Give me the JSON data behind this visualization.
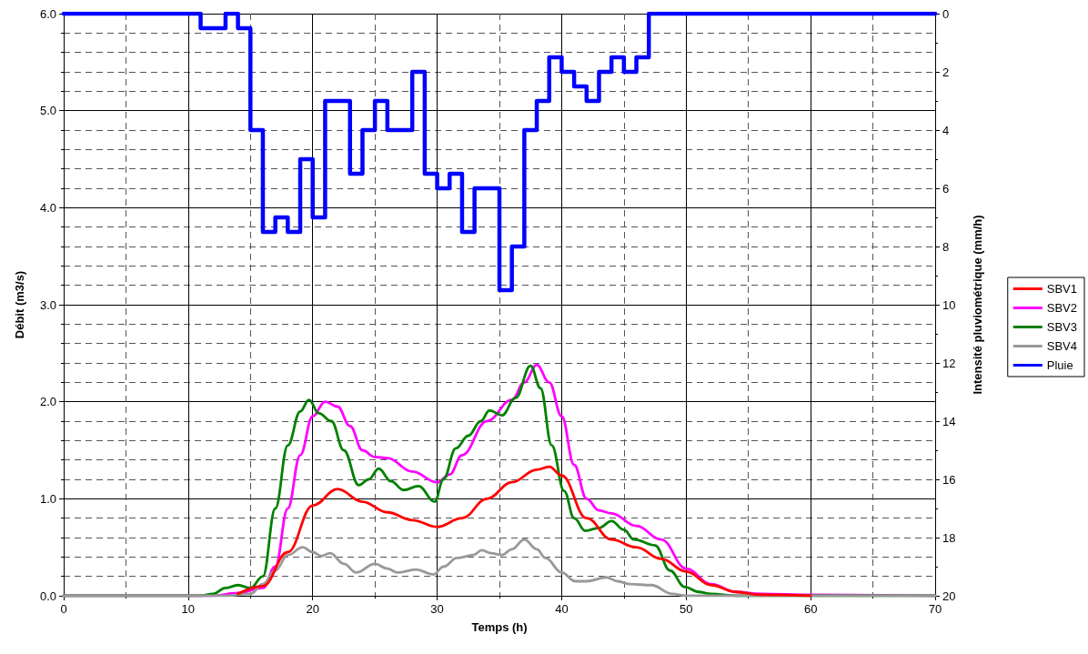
{
  "chart_data": {
    "type": "line",
    "xlabel": "Temps (h)",
    "ylabel": "Débit (m3/s)",
    "y2label": "Intensité pluviométrique (mm/h)",
    "xlim": [
      0,
      70
    ],
    "xticks": [
      0,
      10,
      20,
      30,
      40,
      50,
      60,
      70
    ],
    "ylim": [
      0,
      6
    ],
    "yticks": [
      {
        "value": 0,
        "label": "0.0"
      },
      {
        "value": 1,
        "label": "1.0"
      },
      {
        "value": 2,
        "label": "2.0"
      },
      {
        "value": 3,
        "label": "3.0"
      },
      {
        "value": 4,
        "label": "4.0"
      },
      {
        "value": 5,
        "label": "5.0"
      },
      {
        "value": 6,
        "label": "6.0"
      }
    ],
    "y2lim": [
      20,
      0
    ],
    "y2ticks": [
      0,
      2,
      4,
      6,
      8,
      10,
      12,
      14,
      16,
      18,
      20
    ],
    "grid": true,
    "legend": "right",
    "marker": "none",
    "series": [
      {
        "name": "SBV1",
        "color": "#ff0000",
        "x": [
          14,
          16,
          18,
          20,
          22,
          24,
          26,
          28,
          30,
          32,
          34,
          36,
          38,
          39,
          40,
          42,
          44,
          46,
          48,
          50,
          52,
          54,
          56,
          60
        ],
        "values": [
          0.02,
          0.1,
          0.45,
          0.93,
          1.1,
          0.97,
          0.86,
          0.78,
          0.71,
          0.8,
          1.0,
          1.17,
          1.3,
          1.33,
          1.24,
          0.8,
          0.58,
          0.5,
          0.38,
          0.25,
          0.11,
          0.04,
          0.01,
          0
        ]
      },
      {
        "name": "SBV2",
        "color": "#ff00ff",
        "x": [
          0,
          12,
          14,
          16,
          17,
          18,
          19,
          20,
          21,
          22,
          23,
          24,
          25,
          26,
          28,
          30,
          31,
          32,
          34,
          36,
          37,
          38,
          39,
          40,
          41,
          42,
          43,
          44,
          46,
          48,
          50,
          52,
          54,
          56,
          60,
          70
        ],
        "values": [
          0,
          0,
          0.03,
          0.08,
          0.3,
          0.9,
          1.45,
          1.85,
          2.0,
          1.95,
          1.75,
          1.5,
          1.43,
          1.42,
          1.28,
          1.17,
          1.25,
          1.45,
          1.8,
          2.02,
          2.2,
          2.38,
          2.2,
          1.85,
          1.35,
          1.0,
          0.88,
          0.85,
          0.72,
          0.58,
          0.28,
          0.12,
          0.04,
          0.02,
          0.01,
          0
        ]
      },
      {
        "name": "SBV3",
        "color": "#008000",
        "x": [
          0,
          11,
          12,
          13,
          14,
          15,
          16,
          17,
          18,
          19,
          19.7,
          20.5,
          21.5,
          22.5,
          23.7,
          24.5,
          25.3,
          26.3,
          27.3,
          28.5,
          29.8,
          30.5,
          31.5,
          32.5,
          33.5,
          34.2,
          35.2,
          36.3,
          37.5,
          38.3,
          39.2,
          40.2,
          41,
          41.9,
          43,
          44,
          45,
          45.8,
          47.5,
          48.7,
          49.9,
          51,
          52,
          54,
          70
        ],
        "values": [
          0,
          0,
          0.02,
          0.08,
          0.11,
          0.08,
          0.2,
          0.9,
          1.55,
          1.9,
          2.02,
          1.88,
          1.8,
          1.5,
          1.14,
          1.2,
          1.31,
          1.18,
          1.09,
          1.13,
          0.97,
          1.2,
          1.52,
          1.65,
          1.8,
          1.91,
          1.86,
          2.04,
          2.37,
          2.14,
          1.55,
          1.08,
          0.8,
          0.67,
          0.7,
          0.77,
          0.68,
          0.58,
          0.52,
          0.26,
          0.09,
          0.04,
          0.02,
          0,
          0
        ]
      },
      {
        "name": "SBV4",
        "color": "#999999",
        "x": [
          0,
          13,
          15,
          16,
          17,
          18,
          19.2,
          20,
          20.7,
          21.4,
          22.5,
          23.5,
          25,
          26,
          26.8,
          28.3,
          29.7,
          30.5,
          31.6,
          32.9,
          33.6,
          34.3,
          35.2,
          36,
          37,
          38,
          38.7,
          40,
          41.1,
          42,
          43.6,
          44.5,
          45.5,
          47.2,
          48.9,
          50,
          70
        ],
        "values": [
          0,
          0,
          0.02,
          0.12,
          0.26,
          0.42,
          0.5,
          0.45,
          0.41,
          0.44,
          0.33,
          0.24,
          0.33,
          0.28,
          0.24,
          0.27,
          0.22,
          0.3,
          0.39,
          0.42,
          0.47,
          0.44,
          0.42,
          0.48,
          0.58,
          0.48,
          0.39,
          0.24,
          0.15,
          0.15,
          0.19,
          0.15,
          0.12,
          0.11,
          0.02,
          0,
          0
        ]
      },
      {
        "name": "Pluie",
        "type": "step",
        "axis": "y2",
        "color": "#0000ff",
        "x": [
          0,
          11,
          13,
          14,
          15,
          16,
          17,
          18,
          19,
          20,
          21,
          23,
          24,
          25,
          26,
          28,
          29,
          30,
          31,
          32,
          33,
          35,
          36,
          37,
          38,
          39,
          40,
          41,
          42,
          43,
          44,
          45,
          46,
          47,
          70
        ],
        "values": [
          0,
          0.5,
          0,
          0.5,
          4,
          7.5,
          7,
          7.5,
          5,
          7,
          3,
          5.5,
          4,
          3,
          4,
          2,
          5.5,
          6,
          5.5,
          7.5,
          6,
          9.5,
          8,
          4,
          3,
          1.5,
          2,
          2.5,
          3,
          2,
          1.5,
          2,
          1.5,
          0,
          0
        ]
      }
    ]
  }
}
